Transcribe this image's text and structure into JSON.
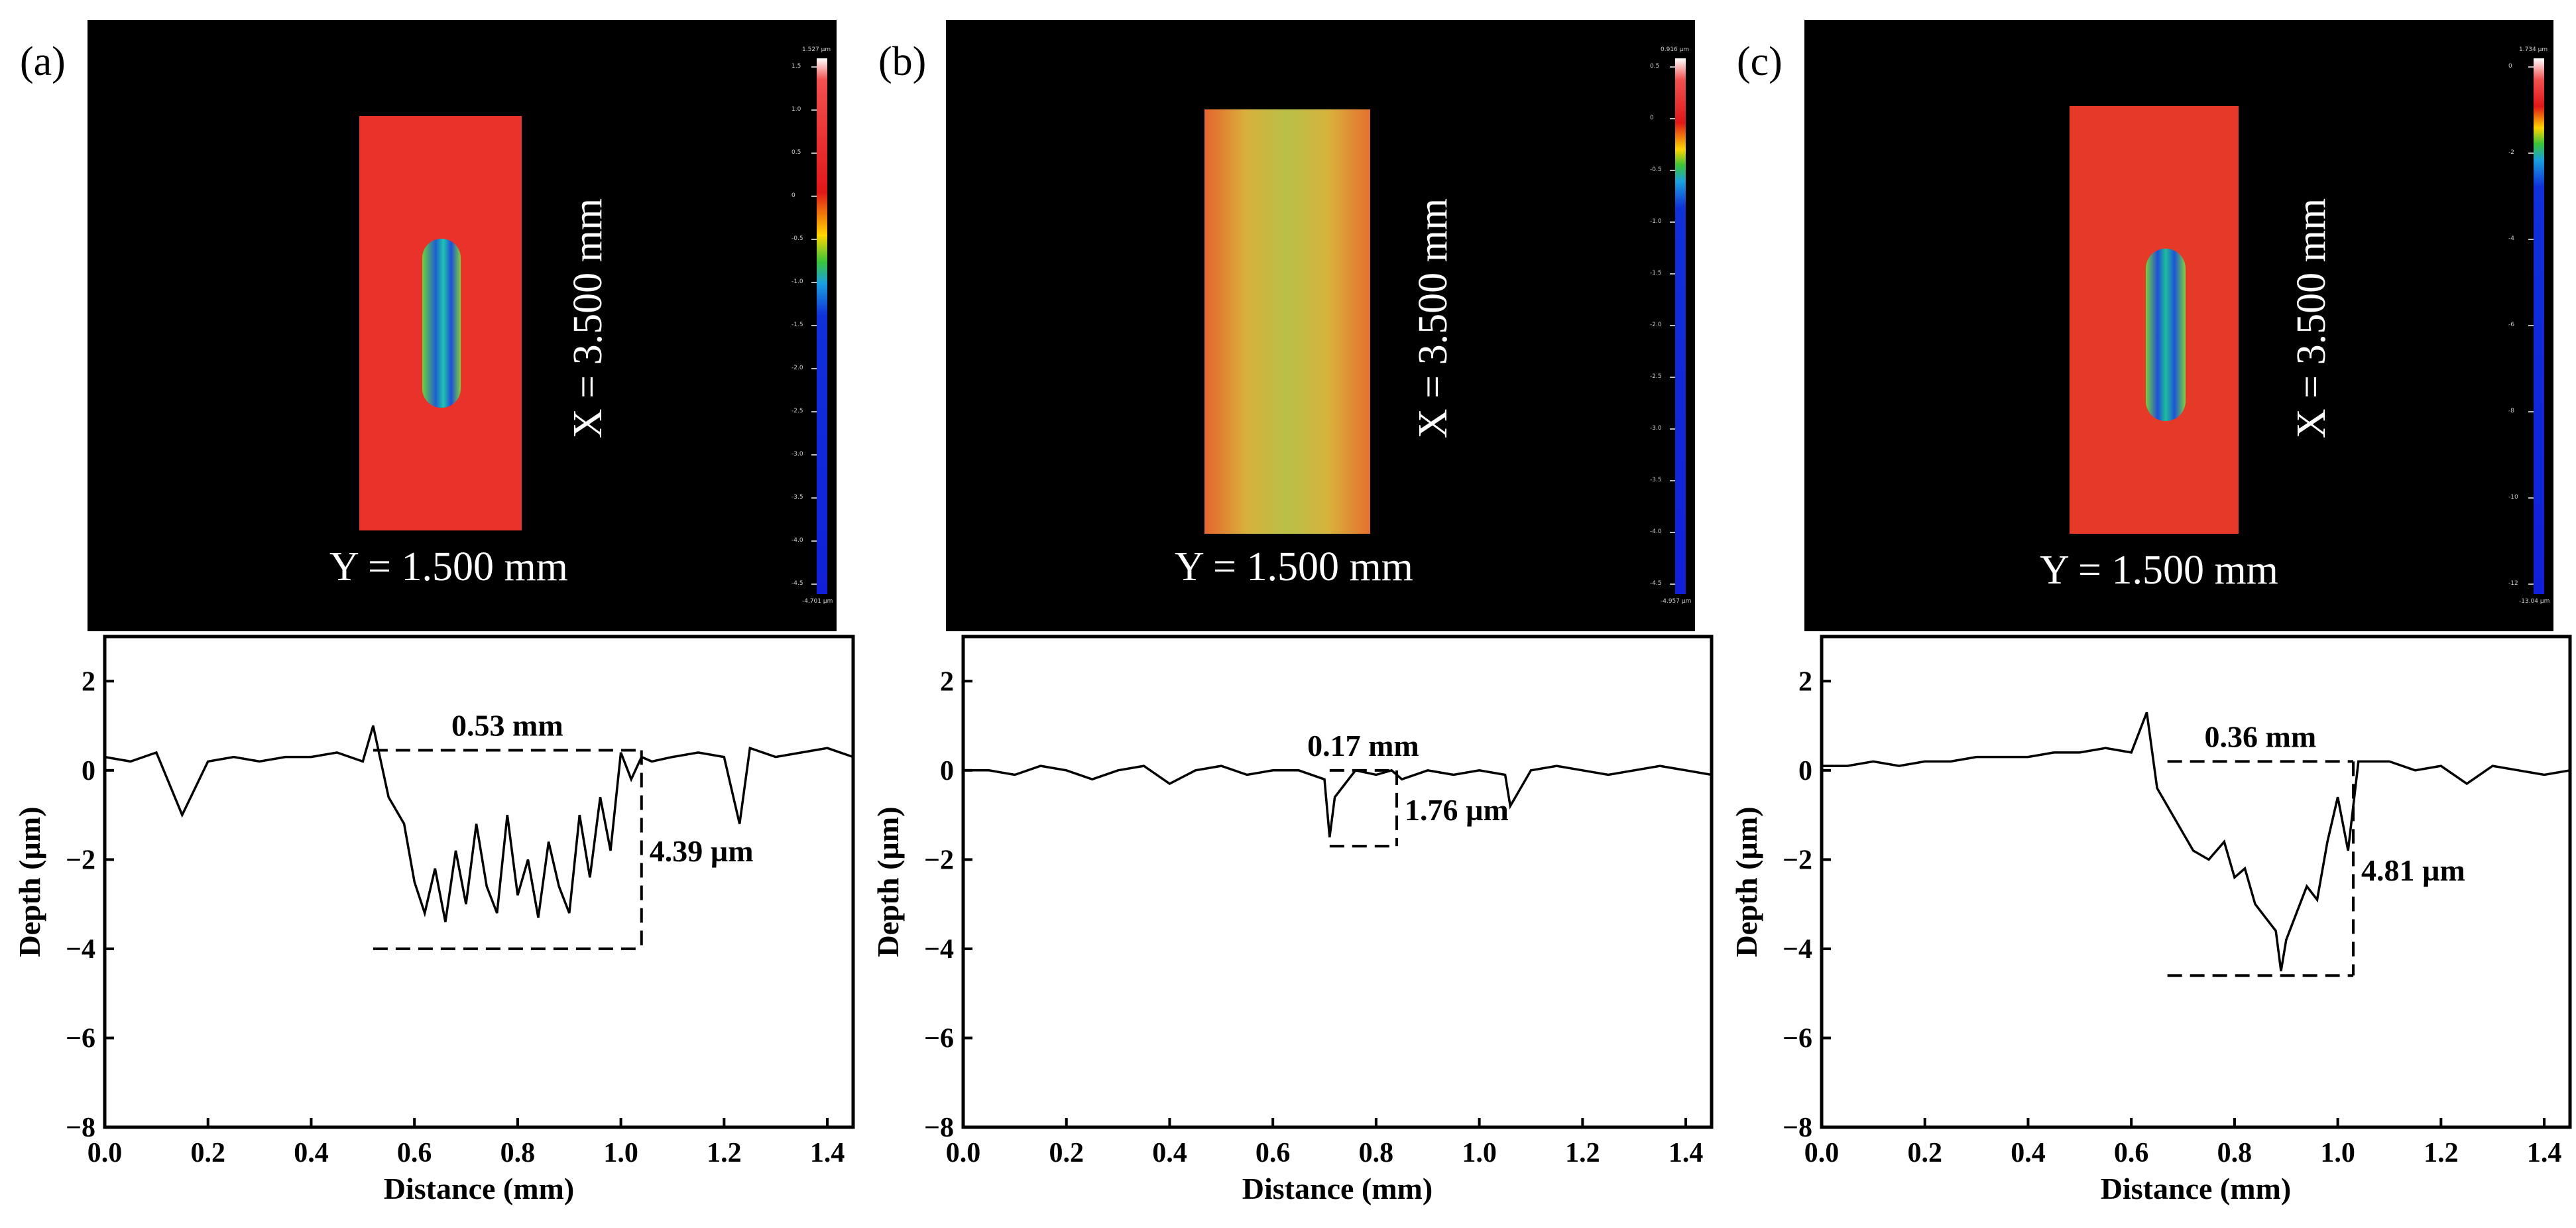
{
  "panels": [
    {
      "label": "(a)",
      "topo": {
        "x_dim_label": "X = 3.500 mm",
        "y_dim_label": "Y = 1.500 mm",
        "scale_top": "1.527 µm",
        "scale_bottom": "-4.701 µm",
        "scale_ticks": [
          "1.5",
          "1.0",
          "0.5",
          "0",
          "-0.5",
          "-1.0",
          "-1.5",
          "-2.0",
          "-2.5",
          "-3.0",
          "-3.5",
          "-4.0",
          "-4.5"
        ],
        "sample_color": "#e8322a"
      }
    },
    {
      "label": "(b)",
      "topo": {
        "x_dim_label": "X = 3.500 mm",
        "y_dim_label": "Y = 1.500 mm",
        "scale_top": "0.916 µm",
        "scale_bottom": "-4.957 µm",
        "scale_ticks": [
          "0.5",
          "0",
          "-0.5",
          "-1.0",
          "-1.5",
          "-2.0",
          "-2.5",
          "-3.0",
          "-3.5",
          "-4.0",
          "-4.5"
        ],
        "sample_color": "#d7a83a"
      }
    },
    {
      "label": "(c)",
      "topo": {
        "x_dim_label": "X = 3.500 mm",
        "y_dim_label": "Y = 1.500 mm",
        "scale_top": "1.734 µm",
        "scale_bottom": "-13.04 µm",
        "scale_ticks": [
          "0",
          "-2",
          "-4",
          "-6",
          "-8",
          "-10",
          "-12"
        ],
        "sample_color": "#e63a28"
      }
    }
  ],
  "chart_data": [
    {
      "type": "line",
      "xlabel": "Distance (mm)",
      "ylabel": "Depth (µm)",
      "xlim": [
        0.0,
        1.45
      ],
      "ylim": [
        -8,
        3
      ],
      "xticks": [
        "0.0",
        "0.2",
        "0.4",
        "0.6",
        "0.8",
        "1.0",
        "1.2",
        "1.4"
      ],
      "yticks": [
        "2",
        "0",
        "−2",
        "−4",
        "−6",
        "−8"
      ],
      "series": [
        {
          "x": [
            0.0,
            0.05,
            0.1,
            0.15,
            0.2,
            0.25,
            0.3,
            0.35,
            0.4,
            0.45,
            0.5,
            0.52,
            0.55,
            0.58,
            0.6,
            0.62,
            0.64,
            0.66,
            0.68,
            0.7,
            0.72,
            0.74,
            0.76,
            0.78,
            0.8,
            0.82,
            0.84,
            0.86,
            0.88,
            0.9,
            0.92,
            0.94,
            0.96,
            0.98,
            1.0,
            1.02,
            1.04,
            1.06,
            1.1,
            1.15,
            1.2,
            1.23,
            1.25,
            1.3,
            1.35,
            1.4,
            1.45
          ],
          "y": [
            0.3,
            0.2,
            0.4,
            -1.0,
            0.2,
            0.3,
            0.2,
            0.3,
            0.3,
            0.4,
            0.2,
            1.0,
            -0.6,
            -1.2,
            -2.5,
            -3.2,
            -2.2,
            -3.4,
            -1.8,
            -3.0,
            -1.2,
            -2.6,
            -3.2,
            -1.0,
            -2.8,
            -2.0,
            -3.3,
            -1.6,
            -2.6,
            -3.2,
            -1.0,
            -2.4,
            -0.6,
            -1.8,
            0.4,
            -0.2,
            0.3,
            0.2,
            0.3,
            0.4,
            0.3,
            -1.2,
            0.5,
            0.3,
            0.4,
            0.5,
            0.3
          ]
        }
      ],
      "annotations": {
        "width_label": "0.53 mm",
        "depth_label": "4.39 µm",
        "box": {
          "x0": 0.52,
          "x1": 1.04,
          "y_top": 0.45,
          "y_bottom": -4.0
        }
      }
    },
    {
      "type": "line",
      "xlabel": "Distance (mm)",
      "ylabel": "Depth (µm)",
      "xlim": [
        0.0,
        1.45
      ],
      "ylim": [
        -8,
        3
      ],
      "xticks": [
        "0.0",
        "0.2",
        "0.4",
        "0.6",
        "0.8",
        "1.0",
        "1.2",
        "1.4"
      ],
      "yticks": [
        "2",
        "0",
        "−2",
        "−4",
        "−6",
        "−8"
      ],
      "series": [
        {
          "x": [
            0.0,
            0.05,
            0.1,
            0.15,
            0.2,
            0.25,
            0.3,
            0.35,
            0.4,
            0.45,
            0.5,
            0.55,
            0.6,
            0.65,
            0.7,
            0.71,
            0.72,
            0.74,
            0.76,
            0.8,
            0.83,
            0.85,
            0.9,
            0.95,
            1.0,
            1.05,
            1.06,
            1.1,
            1.15,
            1.2,
            1.25,
            1.3,
            1.35,
            1.4,
            1.45
          ],
          "y": [
            0.0,
            0.0,
            -0.1,
            0.1,
            0.0,
            -0.2,
            0.0,
            0.1,
            -0.3,
            0.0,
            0.1,
            -0.1,
            0.0,
            0.0,
            -0.2,
            -1.5,
            -0.6,
            -0.3,
            0.0,
            -0.1,
            0.0,
            -0.2,
            0.0,
            -0.1,
            0.0,
            -0.1,
            -0.8,
            0.0,
            0.1,
            0.0,
            -0.1,
            0.0,
            0.1,
            0.0,
            -0.1
          ]
        }
      ],
      "annotations": {
        "width_label": "0.17 mm",
        "depth_label": "1.76 µm",
        "box": {
          "x0": 0.71,
          "x1": 0.84,
          "y_top": 0.0,
          "y_bottom": -1.7
        }
      }
    },
    {
      "type": "line",
      "xlabel": "Distance (mm)",
      "ylabel": "Depth (µm)",
      "xlim": [
        0.0,
        1.45
      ],
      "ylim": [
        -8,
        3
      ],
      "xticks": [
        "0.0",
        "0.2",
        "0.4",
        "0.6",
        "0.8",
        "1.0",
        "1.2",
        "1.4"
      ],
      "yticks": [
        "2",
        "0",
        "−2",
        "−4",
        "−6",
        "−8"
      ],
      "series": [
        {
          "x": [
            0.0,
            0.05,
            0.1,
            0.15,
            0.2,
            0.25,
            0.3,
            0.35,
            0.4,
            0.45,
            0.5,
            0.55,
            0.6,
            0.63,
            0.65,
            0.67,
            0.7,
            0.72,
            0.75,
            0.78,
            0.8,
            0.82,
            0.84,
            0.86,
            0.88,
            0.89,
            0.9,
            0.92,
            0.94,
            0.96,
            0.98,
            1.0,
            1.02,
            1.04,
            1.1,
            1.15,
            1.2,
            1.25,
            1.3,
            1.35,
            1.4,
            1.45
          ],
          "y": [
            0.1,
            0.1,
            0.2,
            0.1,
            0.2,
            0.2,
            0.3,
            0.3,
            0.3,
            0.4,
            0.4,
            0.5,
            0.4,
            1.3,
            -0.4,
            -0.8,
            -1.4,
            -1.8,
            -2.0,
            -1.6,
            -2.4,
            -2.2,
            -3.0,
            -3.3,
            -3.6,
            -4.5,
            -3.8,
            -3.2,
            -2.6,
            -2.9,
            -1.6,
            -0.6,
            -1.8,
            0.2,
            0.2,
            0.0,
            0.1,
            -0.3,
            0.1,
            0.0,
            -0.1,
            0.0
          ]
        }
      ],
      "annotations": {
        "width_label": "0.36 mm",
        "depth_label": "4.81 µm",
        "box": {
          "x0": 0.67,
          "x1": 1.03,
          "y_top": 0.2,
          "y_bottom": -4.6
        }
      }
    }
  ]
}
